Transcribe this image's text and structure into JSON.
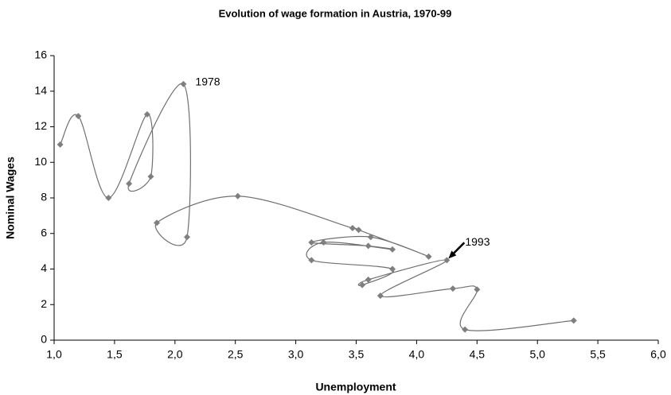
{
  "chart_data": {
    "type": "line",
    "title": "Evolution of wage formation in Austria, 1970-99",
    "xlabel": "Unemployment",
    "ylabel": "Nominal Wages",
    "x": [
      1.05,
      1.2,
      1.45,
      1.77,
      1.8,
      1.62,
      2.07,
      2.1,
      1.85,
      2.52,
      3.47,
      3.52,
      4.1,
      3.62,
      3.13,
      3.6,
      3.8,
      3.23,
      3.13,
      3.8,
      3.55,
      3.6,
      4.25,
      3.7,
      4.3,
      4.5,
      4.4,
      5.3
    ],
    "series": [
      {
        "name": "Nominal Wages",
        "color": "#707070",
        "marker_color": "#7f7f7f",
        "values": [
          11.0,
          12.6,
          8.0,
          12.7,
          9.2,
          8.8,
          14.4,
          5.8,
          6.6,
          8.1,
          6.3,
          6.2,
          4.7,
          5.8,
          5.5,
          5.3,
          5.1,
          5.5,
          4.5,
          4.0,
          3.1,
          3.4,
          4.5,
          2.5,
          2.9,
          2.85,
          0.6,
          1.1
        ]
      }
    ],
    "xlim": [
      1.0,
      6.0
    ],
    "xticks": [
      {
        "value": 1.0,
        "label": "1,0"
      },
      {
        "value": 1.5,
        "label": "1,5"
      },
      {
        "value": 2.0,
        "label": "2,0"
      },
      {
        "value": 2.5,
        "label": "2,5"
      },
      {
        "value": 3.0,
        "label": "3,0"
      },
      {
        "value": 3.5,
        "label": "3,5"
      },
      {
        "value": 4.0,
        "label": "4,0"
      },
      {
        "value": 4.5,
        "label": "4,5"
      },
      {
        "value": 5.0,
        "label": "5,0"
      },
      {
        "value": 5.5,
        "label": "5,5"
      },
      {
        "value": 6.0,
        "label": "6,0"
      }
    ],
    "ylim": [
      0,
      16
    ],
    "yticks": [
      0,
      2,
      4,
      6,
      8,
      10,
      12,
      14,
      16
    ],
    "grid": false,
    "smooth": true,
    "annotations": [
      {
        "text": "1978",
        "x": 2.07,
        "y": 14.4,
        "arrow": false
      },
      {
        "text": "1993",
        "x": 4.25,
        "y": 4.5,
        "arrow": true
      }
    ]
  }
}
